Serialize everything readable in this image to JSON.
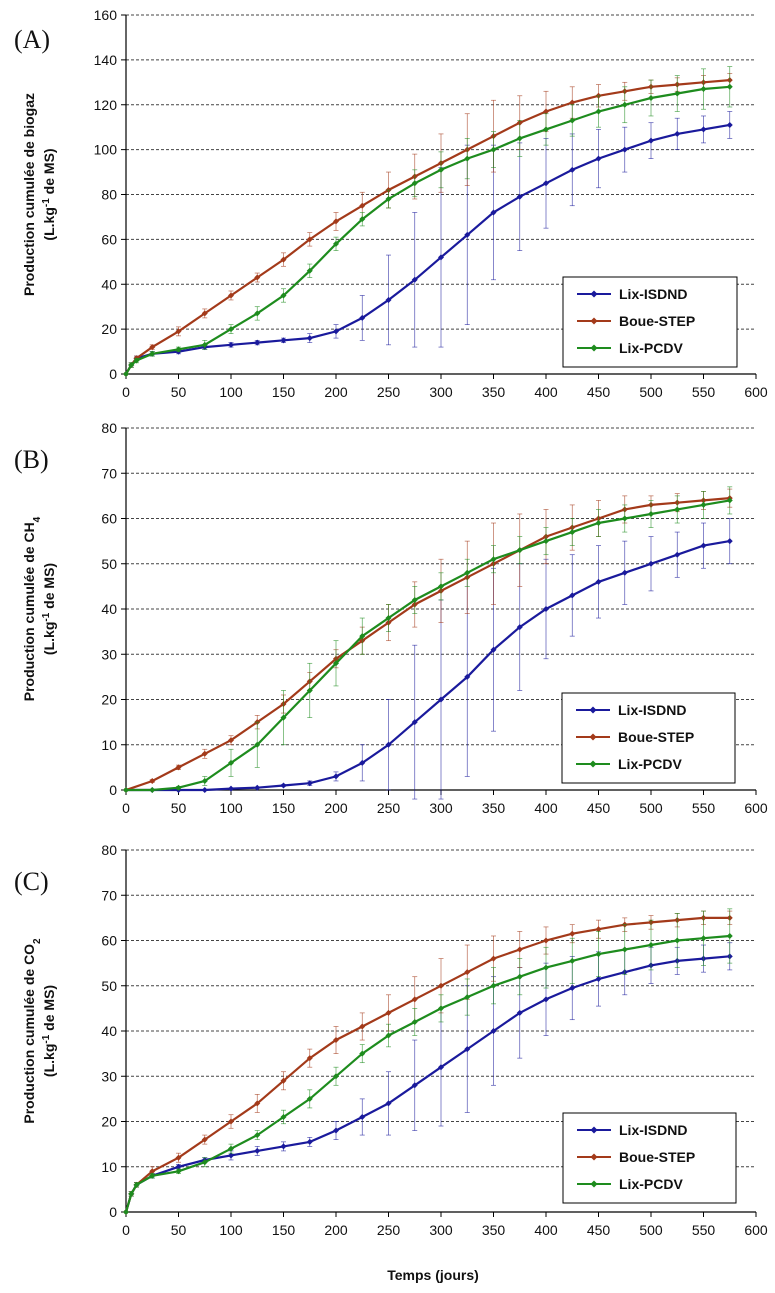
{
  "colors": {
    "Lix-ISDND": "#1a1a9c",
    "Boue-STEP": "#a33a1a",
    "Lix-PCDV": "#1e8c1e"
  },
  "xlabel": "Temps (jours)",
  "chart_data": [
    {
      "type": "line",
      "panel": "(A)",
      "ylabel_line1": "Production cumulée de biogaz",
      "ylabel_line2": "(L.kg",
      "ylabel_sup": "-1",
      "ylabel_line2_end": " de MS)",
      "xlim": [
        0,
        600
      ],
      "ylim": [
        0,
        160
      ],
      "xticks": [
        0,
        50,
        100,
        150,
        200,
        250,
        300,
        350,
        400,
        450,
        500,
        550,
        600
      ],
      "yticks": [
        0,
        20,
        40,
        60,
        80,
        100,
        120,
        140,
        160
      ],
      "grid": "horizontal dashed",
      "legend_position": "lower-right",
      "series": [
        {
          "name": "Lix-ISDND",
          "x": [
            0,
            5,
            10,
            25,
            50,
            75,
            100,
            125,
            150,
            175,
            200,
            225,
            250,
            275,
            300,
            325,
            350,
            375,
            400,
            425,
            450,
            475,
            500,
            525,
            550,
            575
          ],
          "y": [
            0,
            4,
            7,
            9,
            10,
            12,
            13,
            14,
            15,
            16,
            19,
            25,
            33,
            42,
            52,
            62,
            72,
            79,
            85,
            91,
            96,
            100,
            104,
            107,
            109,
            111
          ],
          "err": [
            0,
            1,
            1,
            1,
            1,
            1,
            1,
            1,
            1,
            2,
            3,
            10,
            20,
            30,
            40,
            40,
            30,
            24,
            20,
            16,
            13,
            10,
            8,
            7,
            6,
            6
          ]
        },
        {
          "name": "Boue-STEP",
          "x": [
            0,
            5,
            10,
            25,
            50,
            75,
            100,
            125,
            150,
            175,
            200,
            225,
            250,
            275,
            300,
            325,
            350,
            375,
            400,
            425,
            450,
            475,
            500,
            525,
            550,
            575
          ],
          "y": [
            0,
            4,
            7,
            12,
            19,
            27,
            35,
            43,
            51,
            60,
            68,
            75,
            82,
            88,
            94,
            100,
            106,
            112,
            117,
            121,
            124,
            126,
            128,
            129,
            130,
            131
          ],
          "err": [
            0,
            1,
            1,
            1,
            2,
            2,
            2,
            2,
            3,
            3,
            4,
            6,
            8,
            10,
            13,
            16,
            16,
            12,
            9,
            7,
            5,
            4,
            3,
            3,
            3,
            3
          ]
        },
        {
          "name": "Lix-PCDV",
          "x": [
            0,
            5,
            10,
            25,
            50,
            75,
            100,
            125,
            150,
            175,
            200,
            225,
            250,
            275,
            300,
            325,
            350,
            375,
            400,
            425,
            450,
            475,
            500,
            525,
            550,
            575
          ],
          "y": [
            0,
            4,
            6,
            9,
            11,
            13,
            20,
            27,
            35,
            46,
            58,
            69,
            78,
            85,
            91,
            96,
            100,
            105,
            109,
            113,
            117,
            120,
            123,
            125,
            127,
            128
          ],
          "err": [
            0,
            1,
            1,
            1,
            1,
            2,
            2,
            3,
            3,
            3,
            3,
            3,
            4,
            6,
            8,
            9,
            8,
            8,
            7,
            7,
            7,
            8,
            8,
            8,
            9,
            9
          ]
        }
      ]
    },
    {
      "type": "line",
      "panel": "(B)",
      "ylabel_line1": "Production cumulée de CH",
      "ylabel_sub": "4",
      "ylabel_line2": "(L.kg",
      "ylabel_sup": "-1",
      "ylabel_line2_end": " de MS)",
      "xlim": [
        0,
        600
      ],
      "ylim": [
        0,
        80
      ],
      "xticks": [
        0,
        50,
        100,
        150,
        200,
        250,
        300,
        350,
        400,
        450,
        500,
        550,
        600
      ],
      "yticks": [
        0,
        10,
        20,
        30,
        40,
        50,
        60,
        70,
        80
      ],
      "grid": "horizontal dashed",
      "legend_position": "lower-right",
      "series": [
        {
          "name": "Lix-ISDND",
          "x": [
            0,
            25,
            50,
            75,
            100,
            125,
            150,
            175,
            200,
            225,
            250,
            275,
            300,
            325,
            350,
            375,
            400,
            425,
            450,
            475,
            500,
            525,
            550,
            575
          ],
          "y": [
            0,
            0,
            0,
            0,
            0.3,
            0.5,
            1,
            1.5,
            3,
            6,
            10,
            15,
            20,
            25,
            31,
            36,
            40,
            43,
            46,
            48,
            50,
            52,
            54,
            55
          ],
          "err": [
            0,
            0,
            0,
            0,
            0,
            0,
            0.2,
            0.5,
            1,
            4,
            10,
            17,
            22,
            22,
            18,
            14,
            11,
            9,
            8,
            7,
            6,
            5,
            5,
            5
          ]
        },
        {
          "name": "Boue-STEP",
          "x": [
            0,
            25,
            50,
            75,
            100,
            125,
            150,
            175,
            200,
            225,
            250,
            275,
            300,
            325,
            350,
            375,
            400,
            425,
            450,
            475,
            500,
            525,
            550,
            575
          ],
          "y": [
            0,
            2,
            5,
            8,
            11,
            15,
            19,
            24,
            29,
            33,
            37,
            41,
            44,
            47,
            50,
            53,
            56,
            58,
            60,
            62,
            63,
            63.5,
            64,
            64.5
          ],
          "err": [
            0,
            0.3,
            0.5,
            1,
            1,
            1.5,
            2,
            2,
            2,
            3,
            4,
            5,
            7,
            8,
            9,
            8,
            6,
            5,
            4,
            3,
            2,
            2,
            2,
            2
          ]
        },
        {
          "name": "Lix-PCDV",
          "x": [
            0,
            25,
            50,
            75,
            100,
            125,
            150,
            175,
            200,
            225,
            250,
            275,
            300,
            325,
            350,
            375,
            400,
            425,
            450,
            475,
            500,
            525,
            550,
            575
          ],
          "y": [
            0,
            0,
            0.5,
            2,
            6,
            10,
            16,
            22,
            28,
            34,
            38,
            42,
            45,
            48,
            51,
            53,
            55,
            57,
            59,
            60,
            61,
            62,
            63,
            64
          ],
          "err": [
            0,
            0,
            0.3,
            1,
            3,
            5,
            6,
            6,
            5,
            4,
            3,
            3,
            3,
            3,
            3,
            3,
            3,
            3,
            3,
            3,
            3,
            3,
            3,
            3
          ]
        }
      ]
    },
    {
      "type": "line",
      "panel": "(C)",
      "ylabel_line1": "Production cumulée de CO",
      "ylabel_sub": "2",
      "ylabel_line2": "(L.kg",
      "ylabel_sup": "-1",
      "ylabel_line2_end": " de MS)",
      "xlim": [
        0,
        600
      ],
      "ylim": [
        0,
        80
      ],
      "xticks": [
        0,
        50,
        100,
        150,
        200,
        250,
        300,
        350,
        400,
        450,
        500,
        550,
        600
      ],
      "yticks": [
        0,
        10,
        20,
        30,
        40,
        50,
        60,
        70,
        80
      ],
      "grid": "horizontal dashed",
      "legend_position": "lower-right",
      "series": [
        {
          "name": "Lix-ISDND",
          "x": [
            0,
            5,
            10,
            25,
            50,
            75,
            100,
            125,
            150,
            175,
            200,
            225,
            250,
            275,
            300,
            325,
            350,
            375,
            400,
            425,
            450,
            475,
            500,
            525,
            550,
            575
          ],
          "y": [
            0,
            4,
            6,
            8,
            10,
            11.5,
            12.5,
            13.5,
            14.5,
            15.5,
            18,
            21,
            24,
            28,
            32,
            36,
            40,
            44,
            47,
            49.5,
            51.5,
            53,
            54.5,
            55.5,
            56,
            56.5
          ],
          "err": [
            0,
            0.5,
            0.5,
            0.5,
            0.5,
            0.5,
            1,
            1,
            1,
            1,
            2,
            4,
            7,
            10,
            13,
            14,
            12,
            10,
            8,
            7,
            6,
            5,
            4,
            3,
            3,
            3
          ]
        },
        {
          "name": "Boue-STEP",
          "x": [
            0,
            5,
            10,
            25,
            50,
            75,
            100,
            125,
            150,
            175,
            200,
            225,
            250,
            275,
            300,
            325,
            350,
            375,
            400,
            425,
            450,
            475,
            500,
            525,
            550,
            575
          ],
          "y": [
            0,
            4,
            6,
            9,
            12,
            16,
            20,
            24,
            29,
            34,
            38,
            41,
            44,
            47,
            50,
            53,
            56,
            58,
            60,
            61.5,
            62.5,
            63.5,
            64,
            64.5,
            65,
            65
          ],
          "err": [
            0,
            0.5,
            0.5,
            1,
            1,
            1,
            1.5,
            2,
            2,
            2,
            3,
            3,
            4,
            5,
            6,
            6,
            5,
            4,
            3,
            2,
            2,
            1.5,
            1.5,
            1.5,
            1.5,
            1.5
          ]
        },
        {
          "name": "Lix-PCDV",
          "x": [
            0,
            5,
            10,
            25,
            50,
            75,
            100,
            125,
            150,
            175,
            200,
            225,
            250,
            275,
            300,
            325,
            350,
            375,
            400,
            425,
            450,
            475,
            500,
            525,
            550,
            575
          ],
          "y": [
            0,
            4,
            6,
            8,
            9,
            11,
            14,
            17,
            21,
            25,
            30,
            35,
            39,
            42,
            45,
            47.5,
            50,
            52,
            54,
            55.5,
            57,
            58,
            59,
            60,
            60.5,
            61
          ],
          "err": [
            0,
            0.5,
            0.5,
            0.5,
            0.5,
            1,
            1,
            1,
            1.5,
            2,
            2,
            2,
            2.5,
            3,
            3,
            4,
            4,
            4,
            4.5,
            5,
            5,
            5.5,
            5.5,
            6,
            6,
            6
          ]
        }
      ]
    }
  ]
}
